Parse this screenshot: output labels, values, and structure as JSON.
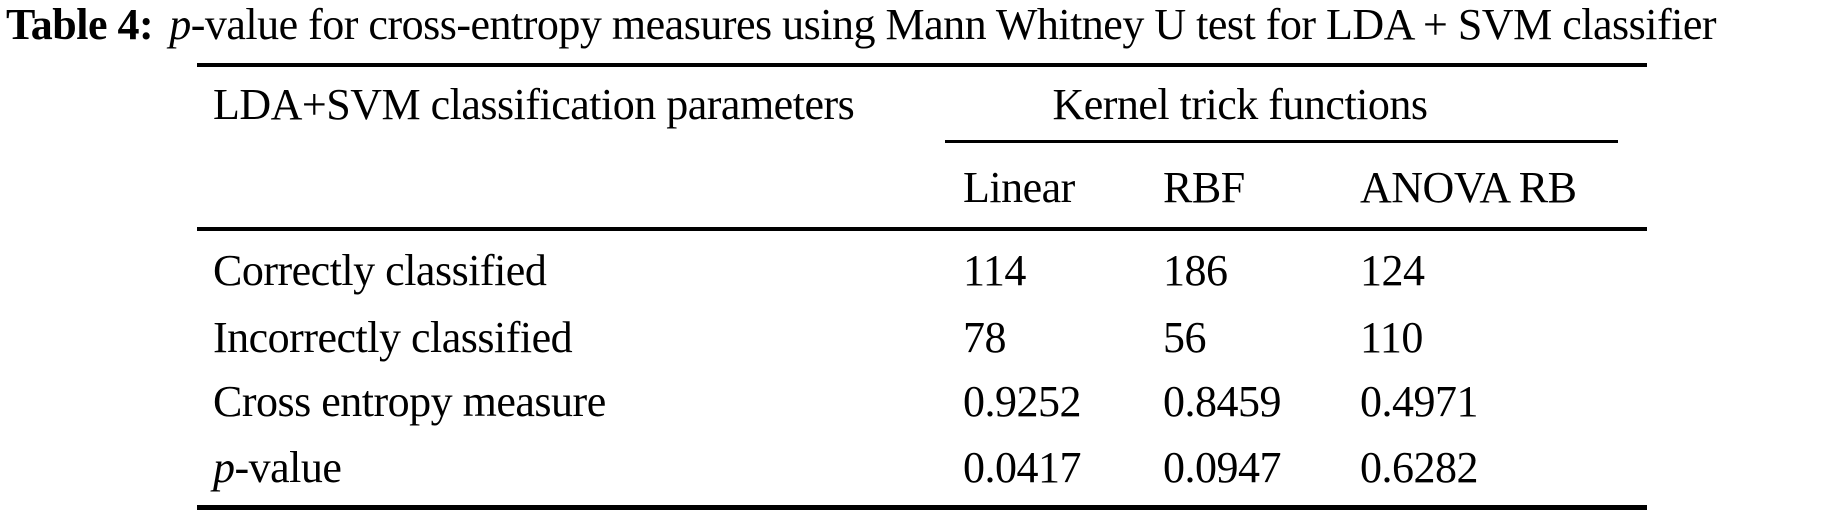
{
  "caption": {
    "label": "Table 4:",
    "italic_lead": "p",
    "rest": "-value for cross-entropy measures using Mann Whitney U test for LDA + SVM classifier"
  },
  "table": {
    "col1_header": "LDA+SVM classification parameters",
    "group_header": "Kernel trick functions",
    "kernel_columns": [
      "Linear",
      "RBF",
      "ANOVA RB"
    ],
    "rows": [
      {
        "label": "Correctly classified",
        "values": [
          "114",
          "186",
          "124"
        ]
      },
      {
        "label": "Incorrectly classified",
        "values": [
          "78",
          "56",
          "110"
        ]
      },
      {
        "label": "Cross entropy measure",
        "values": [
          "0.9252",
          "0.8459",
          "0.4971"
        ]
      },
      {
        "label_italic": "p",
        "label_rest": "-value",
        "values": [
          "0.0417",
          "0.0947",
          "0.6282"
        ]
      }
    ]
  },
  "colors": {
    "background": "#ffffff",
    "text": "#000000",
    "rule": "#000000"
  }
}
